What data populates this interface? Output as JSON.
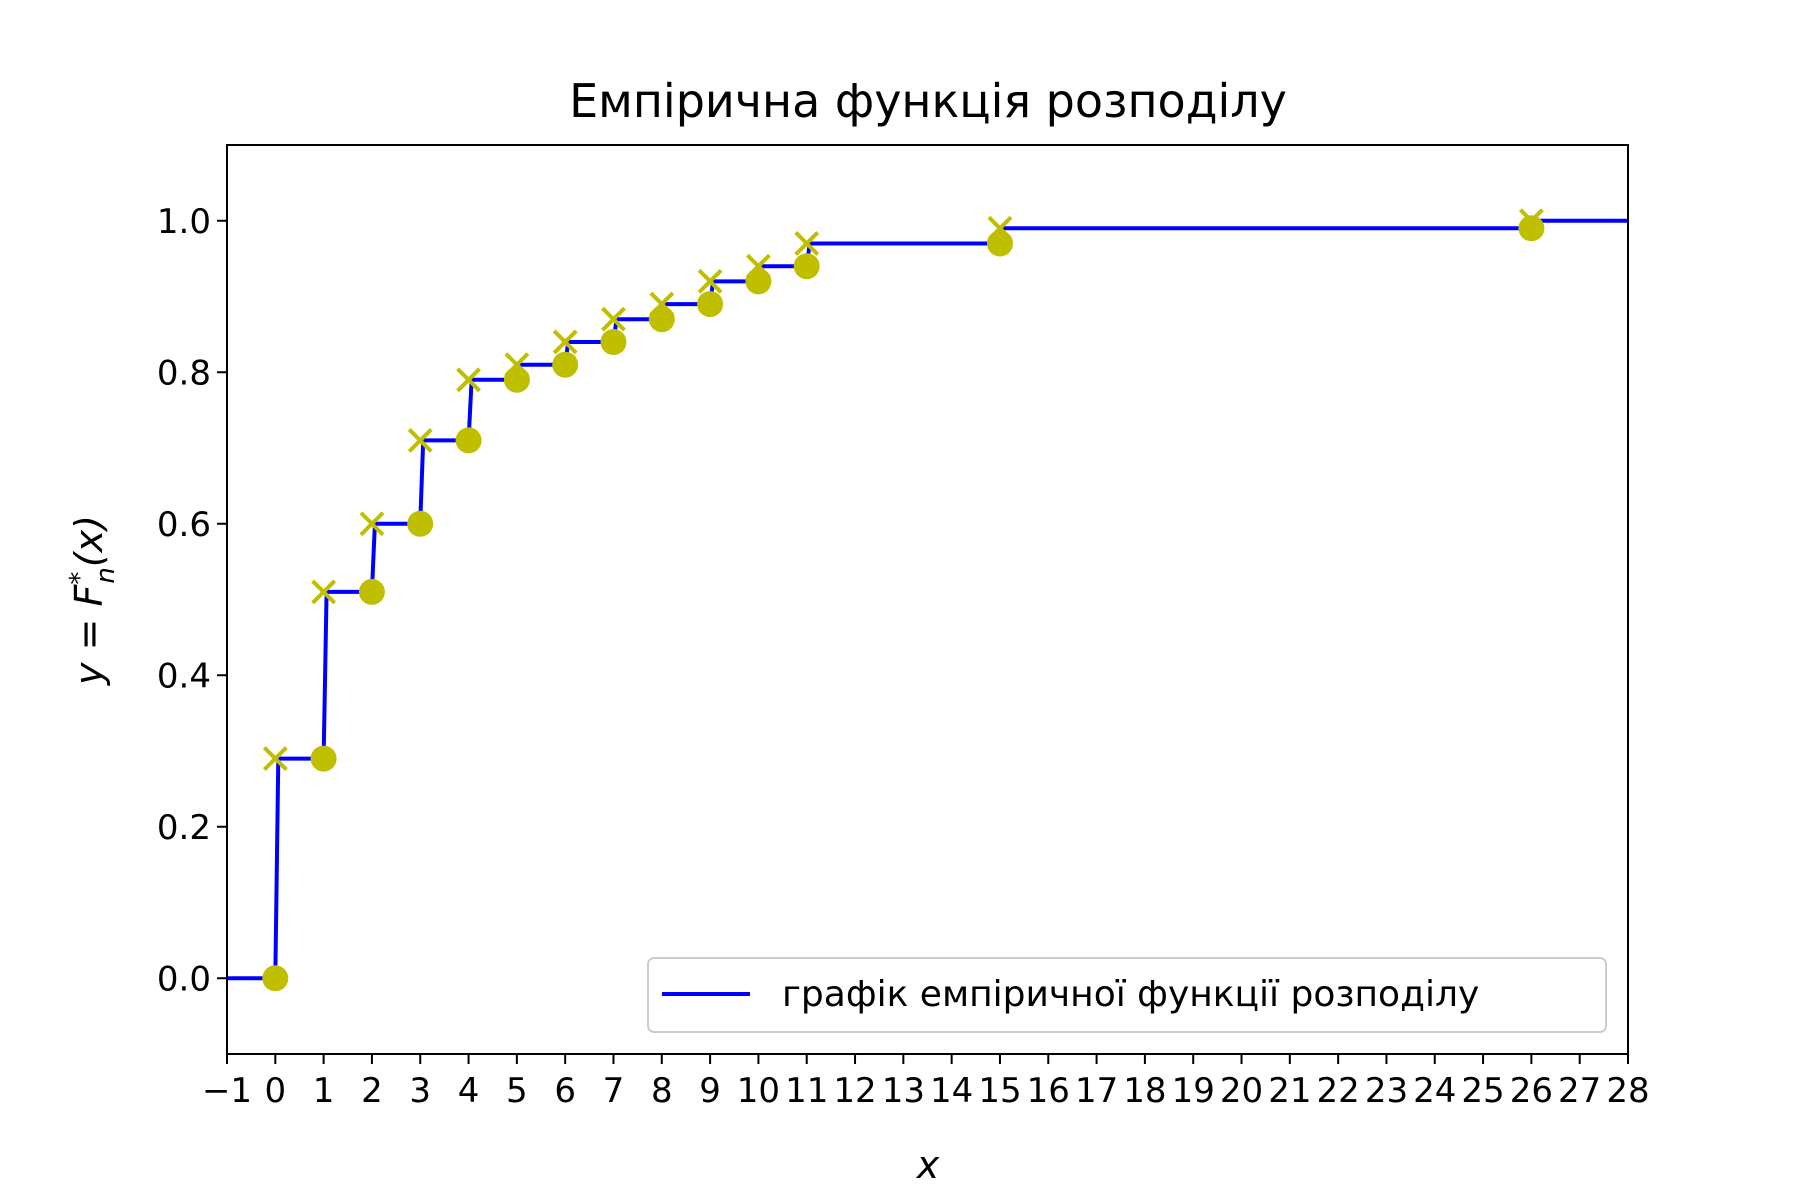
{
  "chart_data": {
    "type": "line",
    "title": "Емпірична функція розподілу",
    "xlabel": "x",
    "ylabel_parts": {
      "y": "y",
      "eq": " = ",
      "F": "F",
      "star": "*",
      "n": "n",
      "args": "(x)"
    },
    "xlim": [
      -1,
      28
    ],
    "ylim": [
      -0.1,
      1.1
    ],
    "xticks": [
      -1,
      0,
      1,
      2,
      3,
      4,
      5,
      6,
      7,
      8,
      9,
      10,
      11,
      12,
      13,
      14,
      15,
      16,
      17,
      18,
      19,
      20,
      21,
      22,
      23,
      24,
      25,
      26,
      27,
      28
    ],
    "xtick_labels": [
      "−1",
      "0",
      "1",
      "2",
      "3",
      "4",
      "5",
      "6",
      "7",
      "8",
      "9",
      "10",
      "11",
      "12",
      "13",
      "14",
      "15",
      "16",
      "17",
      "18",
      "19",
      "20",
      "21",
      "22",
      "23",
      "24",
      "25",
      "26",
      "27",
      "28"
    ],
    "yticks": [
      0.0,
      0.2,
      0.4,
      0.6,
      0.8,
      1.0
    ],
    "ytick_labels": [
      "0.0",
      "0.2",
      "0.4",
      "0.6",
      "0.8",
      "1.0"
    ],
    "grid": false,
    "legend_position": "lower-right",
    "series": [
      {
        "name": "графік емпіричної функції розподілу",
        "color": "#0000ff",
        "x": [
          0,
          1,
          2,
          3,
          4,
          5,
          6,
          7,
          8,
          9,
          10,
          11,
          15,
          26
        ],
        "y_before": [
          0.0,
          0.29,
          0.51,
          0.6,
          0.71,
          0.79,
          0.81,
          0.84,
          0.87,
          0.89,
          0.92,
          0.94,
          0.97,
          0.99
        ],
        "y_after": [
          0.29,
          0.51,
          0.6,
          0.71,
          0.79,
          0.81,
          0.84,
          0.87,
          0.89,
          0.92,
          0.94,
          0.97,
          0.99,
          1.0
        ]
      }
    ],
    "marker_color": "#bfbf00"
  }
}
